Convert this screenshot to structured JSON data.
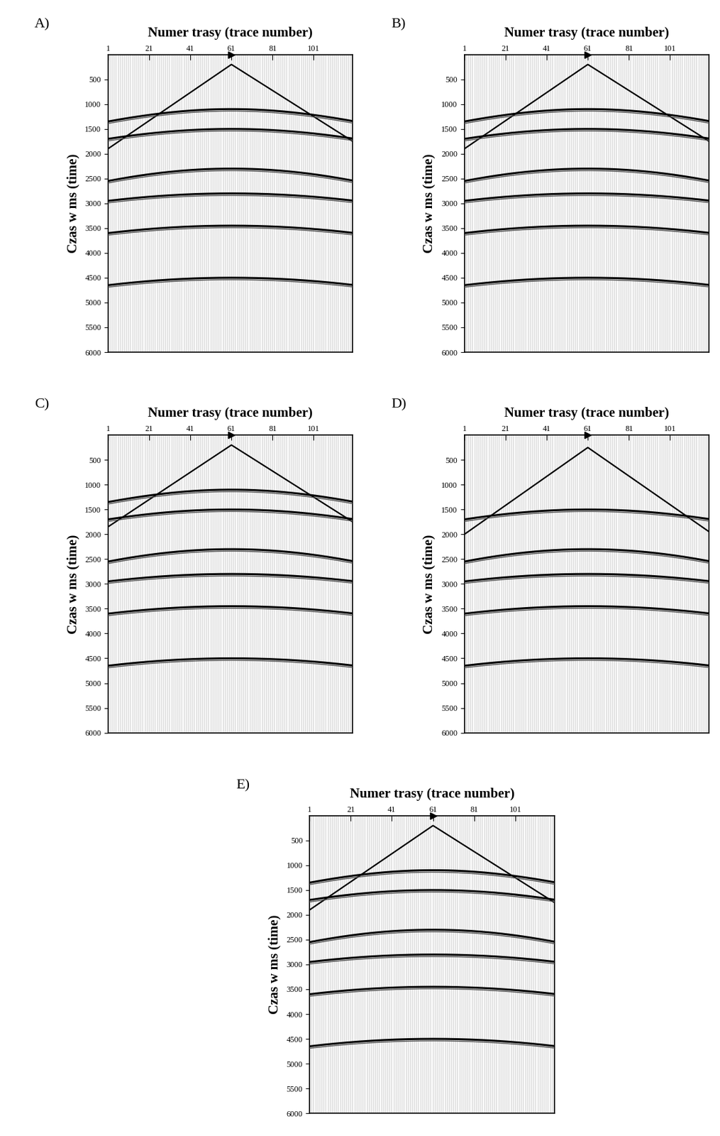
{
  "chart_data": [
    {
      "type": "seismic",
      "label": "A)",
      "title": "Numer trasy (trace number)",
      "y_label": "Czas w ms (time)",
      "xlim": [
        1,
        120
      ],
      "xticks": [
        1,
        21,
        41,
        61,
        81,
        101
      ],
      "ylim": [
        6000,
        0
      ],
      "yticks": [
        500,
        1000,
        1500,
        2000,
        2500,
        3000,
        3500,
        4000,
        4500,
        5000,
        5500,
        6000
      ],
      "shot_trace": 61,
      "first_break": {
        "x": [
          1,
          61,
          120
        ],
        "t": [
          1900,
          200,
          1750
        ]
      },
      "reflections": [
        {
          "t0": 1100,
          "t_edge": 1350
        },
        {
          "t0": 1500,
          "t_edge": 1700
        },
        {
          "t0": 2300,
          "t_edge": 2550
        },
        {
          "t0": 2800,
          "t_edge": 2950
        },
        {
          "t0": 3450,
          "t_edge": 3600
        },
        {
          "t0": 4500,
          "t_edge": 4650
        }
      ]
    },
    {
      "type": "seismic",
      "label": "B)",
      "title": "Numer trasy (trace number)",
      "y_label": "Czas w ms (time)",
      "xlim": [
        1,
        120
      ],
      "xticks": [
        1,
        21,
        41,
        61,
        81,
        101
      ],
      "ylim": [
        6000,
        0
      ],
      "yticks": [
        500,
        1000,
        1500,
        2000,
        2500,
        3000,
        3500,
        4000,
        4500,
        5000,
        5500,
        6000
      ],
      "shot_trace": 61,
      "first_break": {
        "x": [
          1,
          61,
          120
        ],
        "t": [
          1900,
          200,
          1750
        ]
      },
      "reflections": [
        {
          "t0": 1100,
          "t_edge": 1350
        },
        {
          "t0": 1500,
          "t_edge": 1700
        },
        {
          "t0": 2300,
          "t_edge": 2550
        },
        {
          "t0": 2800,
          "t_edge": 2950
        },
        {
          "t0": 3450,
          "t_edge": 3600
        },
        {
          "t0": 4500,
          "t_edge": 4650
        }
      ]
    },
    {
      "type": "seismic",
      "label": "C)",
      "title": "Numer trasy (trace number)",
      "y_label": "Czas w ms (time)",
      "xlim": [
        1,
        120
      ],
      "xticks": [
        1,
        21,
        41,
        61,
        81,
        101
      ],
      "ylim": [
        6000,
        0
      ],
      "yticks": [
        500,
        1000,
        1500,
        2000,
        2500,
        3000,
        3500,
        4000,
        4500,
        5000,
        5500,
        6000
      ],
      "shot_trace": 61,
      "first_break": {
        "x": [
          1,
          61,
          120
        ],
        "t": [
          1850,
          200,
          1750
        ]
      },
      "reflections": [
        {
          "t0": 1100,
          "t_edge": 1350
        },
        {
          "t0": 1500,
          "t_edge": 1700
        },
        {
          "t0": 2300,
          "t_edge": 2550
        },
        {
          "t0": 2800,
          "t_edge": 2950
        },
        {
          "t0": 3450,
          "t_edge": 3600
        },
        {
          "t0": 4500,
          "t_edge": 4650
        }
      ]
    },
    {
      "type": "seismic",
      "label": "D)",
      "title": "Numer trasy (trace number)",
      "y_label": "Czas w ms (time)",
      "xlim": [
        1,
        120
      ],
      "xticks": [
        1,
        21,
        41,
        61,
        81,
        101
      ],
      "ylim": [
        6000,
        0
      ],
      "yticks": [
        500,
        1000,
        1500,
        2000,
        2500,
        3000,
        3500,
        4000,
        4500,
        5000,
        5500,
        6000
      ],
      "shot_trace": 61,
      "first_break": {
        "x": [
          1,
          61,
          120
        ],
        "t": [
          2000,
          250,
          1950
        ]
      },
      "reflections": [
        {
          "t0": 1500,
          "t_edge": 1700
        },
        {
          "t0": 2300,
          "t_edge": 2550
        },
        {
          "t0": 2800,
          "t_edge": 2950
        },
        {
          "t0": 3450,
          "t_edge": 3600
        },
        {
          "t0": 4500,
          "t_edge": 4650
        }
      ]
    },
    {
      "type": "seismic",
      "label": "E)",
      "title": "Numer trasy (trace number)",
      "y_label": "Czas w ms (time)",
      "xlim": [
        1,
        120
      ],
      "xticks": [
        1,
        21,
        41,
        61,
        81,
        101
      ],
      "ylim": [
        6000,
        0
      ],
      "yticks": [
        500,
        1000,
        1500,
        2000,
        2500,
        3000,
        3500,
        4000,
        4500,
        5000,
        5500,
        6000
      ],
      "shot_trace": 61,
      "first_break": {
        "x": [
          1,
          61,
          120
        ],
        "t": [
          1900,
          200,
          1750
        ]
      },
      "reflections": [
        {
          "t0": 1100,
          "t_edge": 1350
        },
        {
          "t0": 1500,
          "t_edge": 1700
        },
        {
          "t0": 2300,
          "t_edge": 2550
        },
        {
          "t0": 2800,
          "t_edge": 2950
        },
        {
          "t0": 3450,
          "t_edge": 3600
        },
        {
          "t0": 4500,
          "t_edge": 4650
        }
      ]
    }
  ]
}
